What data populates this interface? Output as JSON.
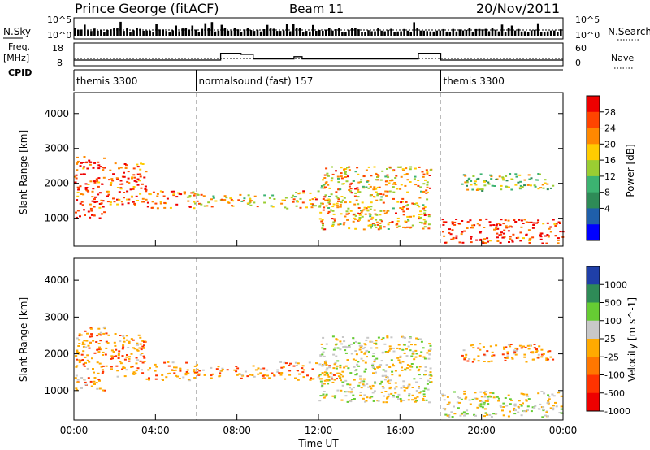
{
  "header": {
    "station": "Prince George (fitACF)",
    "beam": "Beam 11",
    "date": "20/Nov/2011"
  },
  "left_labels": {
    "nsky": "N.Sky",
    "freq_line1": "Freq.",
    "freq_line2": "[MHz]",
    "cpid": "CPID"
  },
  "right_labels": {
    "nsearch": "N.Search",
    "nave": "Nave"
  },
  "noise_axis": {
    "top": "10^5",
    "bottom": "10^0"
  },
  "freq_axis": {
    "top": "18",
    "bottom": "8"
  },
  "nave_axis": {
    "top": "60",
    "bottom": "0"
  },
  "cpid_segments": [
    {
      "label": "themis 3300",
      "start_h": 0,
      "end_h": 6
    },
    {
      "label": "normalsound (fast) 157",
      "start_h": 6,
      "end_h": 18
    },
    {
      "label": "themis 3300",
      "start_h": 18,
      "end_h": 24
    }
  ],
  "power_colorbar": {
    "label": "Power [dB]",
    "ticks": [
      "28",
      "24",
      "20",
      "16",
      "12",
      "8",
      "4"
    ],
    "colors": [
      "#ee0000",
      "#ff4400",
      "#ff8800",
      "#ffcc00",
      "#9acd32",
      "#3cb371",
      "#2e8b57",
      "#1f5faa",
      "#0000ff"
    ]
  },
  "velocity_colorbar": {
    "label": "Velocity [m s^-1]",
    "ticks": [
      "1000",
      "500",
      "100",
      "25",
      "-25",
      "-100",
      "-500",
      "-1000"
    ],
    "colors": [
      "#1f3fa8",
      "#2e8b57",
      "#66cc33",
      "#c8c8c8",
      "#ffaa00",
      "#ff7700",
      "#ff3300",
      "#ee0000"
    ]
  },
  "chart_data": {
    "type": "heatmap",
    "title": "Prince George (fitACF)",
    "xlabel": "Time UT",
    "ylabel": "Slant Range [km]",
    "x_tick_labels": [
      "00:00",
      "04:00",
      "08:00",
      "12:00",
      "16:00",
      "20:00",
      "00:00"
    ],
    "xlim_hours": [
      0,
      24
    ],
    "ylim_km": [
      200,
      4600
    ],
    "y_ticks": [
      1000,
      2000,
      3000,
      4000
    ],
    "panels": [
      "power",
      "velocity"
    ],
    "scatter_bands": [
      {
        "t_start": 0.0,
        "t_end": 1.5,
        "range_lo": 1000,
        "range_hi": 2800,
        "power_db": 26,
        "velocity": -100
      },
      {
        "t_start": 1.5,
        "t_end": 3.5,
        "range_lo": 1400,
        "range_hi": 2600,
        "power_db": 24,
        "velocity": -100
      },
      {
        "t_start": 3.5,
        "t_end": 6.0,
        "range_lo": 1300,
        "range_hi": 1800,
        "power_db": 22,
        "velocity": -100
      },
      {
        "t_start": 6.0,
        "t_end": 10.0,
        "range_lo": 1350,
        "range_hi": 1700,
        "power_db": 18,
        "velocity": -100
      },
      {
        "t_start": 10.0,
        "t_end": 13.0,
        "range_lo": 1300,
        "range_hi": 1800,
        "power_db": 20,
        "velocity": -100
      },
      {
        "t_start": 12.0,
        "t_end": 17.5,
        "range_lo": 700,
        "range_hi": 2500,
        "power_db": 20,
        "velocity": 0
      },
      {
        "t_start": 18.0,
        "t_end": 24.0,
        "range_lo": 300,
        "range_hi": 1000,
        "power_db": 26,
        "velocity": 0
      },
      {
        "t_start": 19.0,
        "t_end": 23.5,
        "range_lo": 1800,
        "range_hi": 2300,
        "power_db": 16,
        "velocity": -100
      }
    ]
  }
}
